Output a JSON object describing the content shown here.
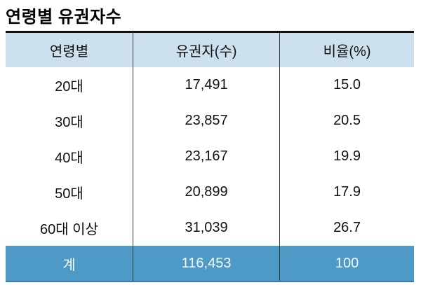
{
  "page": {
    "title": "연령별 유권자수"
  },
  "table": {
    "columns": [
      "연령별",
      "유권자(수)",
      "비율(%)"
    ],
    "rows": [
      {
        "age": "20대",
        "voters": "17,491",
        "ratio": "15.0"
      },
      {
        "age": "30대",
        "voters": "23,857",
        "ratio": "20.5"
      },
      {
        "age": "40대",
        "voters": "23,167",
        "ratio": "19.9"
      },
      {
        "age": "50대",
        "voters": "20,899",
        "ratio": "17.9"
      },
      {
        "age": "60대 이상",
        "voters": "31,039",
        "ratio": "26.7"
      }
    ],
    "total": {
      "age": "계",
      "voters": "116,453",
      "ratio": "100"
    }
  },
  "chart_data": {
    "type": "table",
    "title": "연령별 유권자수",
    "columns": [
      "연령별",
      "유권자(수)",
      "비율(%)"
    ],
    "rows": [
      [
        "20대",
        17491,
        15.0
      ],
      [
        "30대",
        23857,
        20.5
      ],
      [
        "40대",
        23167,
        19.9
      ],
      [
        "50대",
        20899,
        17.9
      ],
      [
        "60대 이상",
        31039,
        26.7
      ],
      [
        "계",
        116453,
        100
      ]
    ]
  },
  "colors": {
    "header_bg": "#cce0ee",
    "total_bg": "#4e9ac6",
    "total_text": "#f4f8fb",
    "total_edge": "#3d7ea8",
    "divider": "#333333",
    "top_border": "#111111"
  }
}
